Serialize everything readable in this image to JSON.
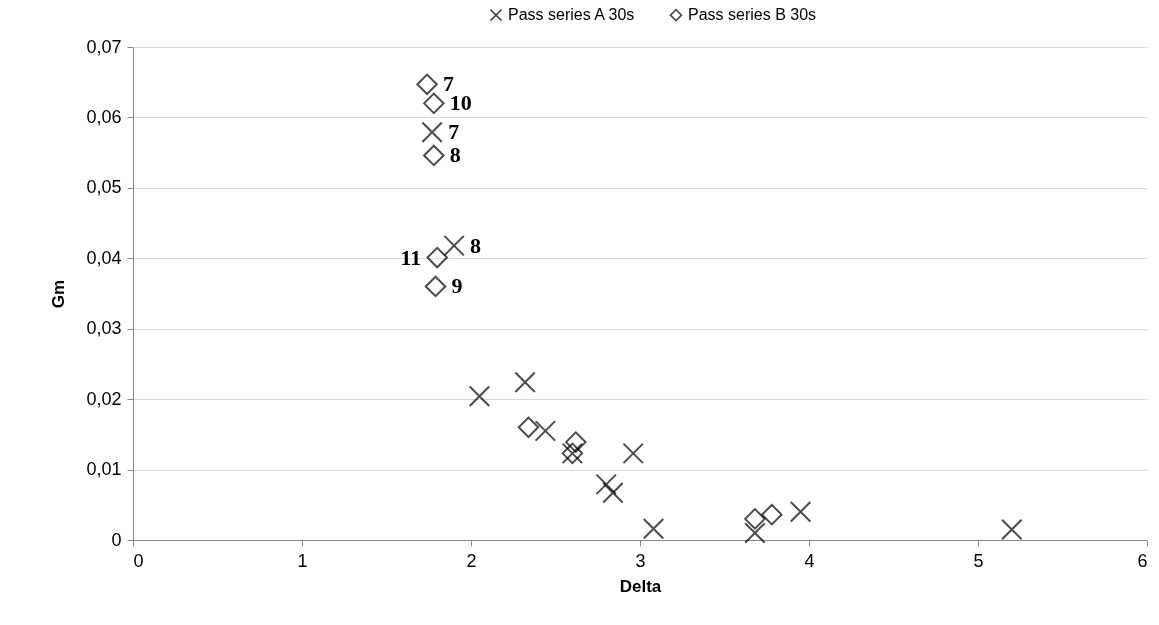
{
  "chart_data": {
    "type": "scatter",
    "xlabel": "Delta",
    "ylabel": "Gm",
    "xlim": [
      0,
      6
    ],
    "xticks": [
      0,
      1,
      2,
      3,
      4,
      5,
      6
    ],
    "ylim": [
      0,
      0.07
    ],
    "yticks": [
      0,
      {
        "value": 0.01,
        "label": "0,01"
      },
      {
        "value": 0.02,
        "label": "0,02"
      },
      {
        "value": 0.03,
        "label": "0,03"
      },
      {
        "value": 0.04,
        "label": "0,04"
      },
      {
        "value": 0.05,
        "label": "0,05"
      },
      {
        "value": 0.06,
        "label": "0,06"
      },
      {
        "value": 0.07,
        "label": "0,07"
      }
    ],
    "grid": "y",
    "legend": "top",
    "series": [
      {
        "name": "Pass series A 30s",
        "color": "#000000",
        "marker": "cross",
        "x": [
          1.77,
          1.9,
          2.05,
          2.32,
          2.44,
          2.6,
          2.96,
          2.8,
          2.84,
          3.08,
          3.68,
          3.95,
          5.2
        ],
        "values": [
          0.0579,
          0.0418,
          0.0204,
          0.0224,
          0.0155,
          0.0123,
          0.0123,
          0.0079,
          0.0067,
          0.0016,
          0.001,
          0.004,
          0.0015
        ]
      },
      {
        "name": "Pass series B 30s",
        "color": "#000000",
        "marker": "diamond",
        "x": [
          1.74,
          1.78,
          1.78,
          1.8,
          1.79,
          2.34,
          2.62,
          2.6,
          3.68,
          3.78
        ],
        "values": [
          0.0647,
          0.062,
          0.0546,
          0.0401,
          0.036,
          0.016,
          0.0139,
          0.0123,
          0.003,
          0.0036
        ]
      }
    ],
    "annotations": [
      {
        "text": "7",
        "x": 1.74,
        "y": 0.0647
      },
      {
        "text": "10",
        "x": 1.78,
        "y": 0.062
      },
      {
        "text": "7",
        "x": 1.77,
        "y": 0.0579
      },
      {
        "text": "8",
        "x": 1.78,
        "y": 0.0546
      },
      {
        "text": "8",
        "x": 1.9,
        "y": 0.0418
      },
      {
        "text": "11",
        "x": 1.8,
        "y": 0.0401
      },
      {
        "text": "9",
        "x": 1.79,
        "y": 0.036
      }
    ]
  }
}
